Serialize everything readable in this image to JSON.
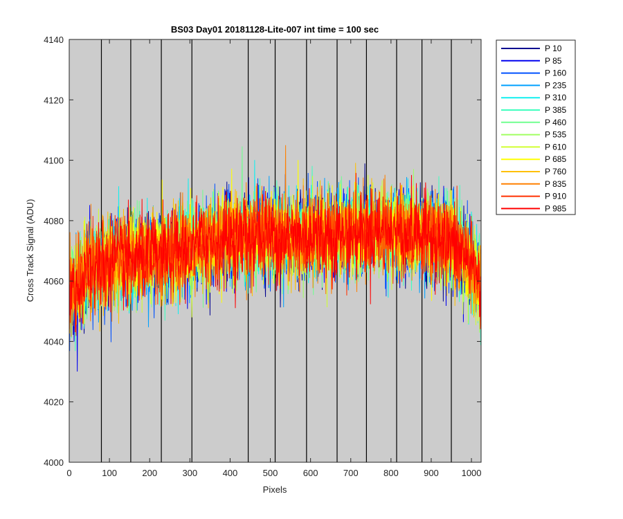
{
  "chart_data": {
    "type": "line",
    "title": "BS03 Day01 20181128-Lite-007 int time = 100 sec",
    "xlabel": "Pixels",
    "ylabel": "Cross Track Signal (ADU)",
    "xlim": [
      0,
      1024
    ],
    "ylim": [
      4000,
      4140
    ],
    "xticks": [
      0,
      100,
      200,
      300,
      400,
      500,
      600,
      700,
      800,
      900,
      1000
    ],
    "yticks": [
      4000,
      4020,
      4040,
      4060,
      4080,
      4100,
      4120,
      4140
    ],
    "vlines": [
      80,
      153,
      229,
      305,
      445,
      512,
      590,
      666,
      739,
      814,
      877,
      950
    ],
    "background": "#cccccc",
    "legend_position": "outside-right",
    "profile": {
      "x": [
        0,
        50,
        100,
        150,
        200,
        250,
        300,
        350,
        400,
        450,
        500,
        550,
        600,
        650,
        700,
        750,
        800,
        850,
        900,
        950,
        1000,
        1024
      ],
      "mean": [
        4055,
        4063,
        4066,
        4067,
        4068,
        4069,
        4071,
        4073,
        4074,
        4075,
        4075,
        4075,
        4075,
        4075,
        4076,
        4076,
        4076,
        4076,
        4075,
        4072,
        4066,
        4058
      ],
      "noise_sd": 7
    },
    "series": [
      {
        "name": "P 10",
        "color": "#00008f"
      },
      {
        "name": "P 85",
        "color": "#0000ef"
      },
      {
        "name": "P 160",
        "color": "#0050ff"
      },
      {
        "name": "P 235",
        "color": "#00a0ff"
      },
      {
        "name": "P 310",
        "color": "#10efef"
      },
      {
        "name": "P 385",
        "color": "#40ffbf"
      },
      {
        "name": "P 460",
        "color": "#70ff8f"
      },
      {
        "name": "P 535",
        "color": "#a0ff60"
      },
      {
        "name": "P 610",
        "color": "#d0ff30"
      },
      {
        "name": "P 685",
        "color": "#ffff00"
      },
      {
        "name": "P 760",
        "color": "#ffc000"
      },
      {
        "name": "P 835",
        "color": "#ff8000"
      },
      {
        "name": "P 910",
        "color": "#ff3000"
      },
      {
        "name": "P 985",
        "color": "#ff0000"
      }
    ]
  }
}
